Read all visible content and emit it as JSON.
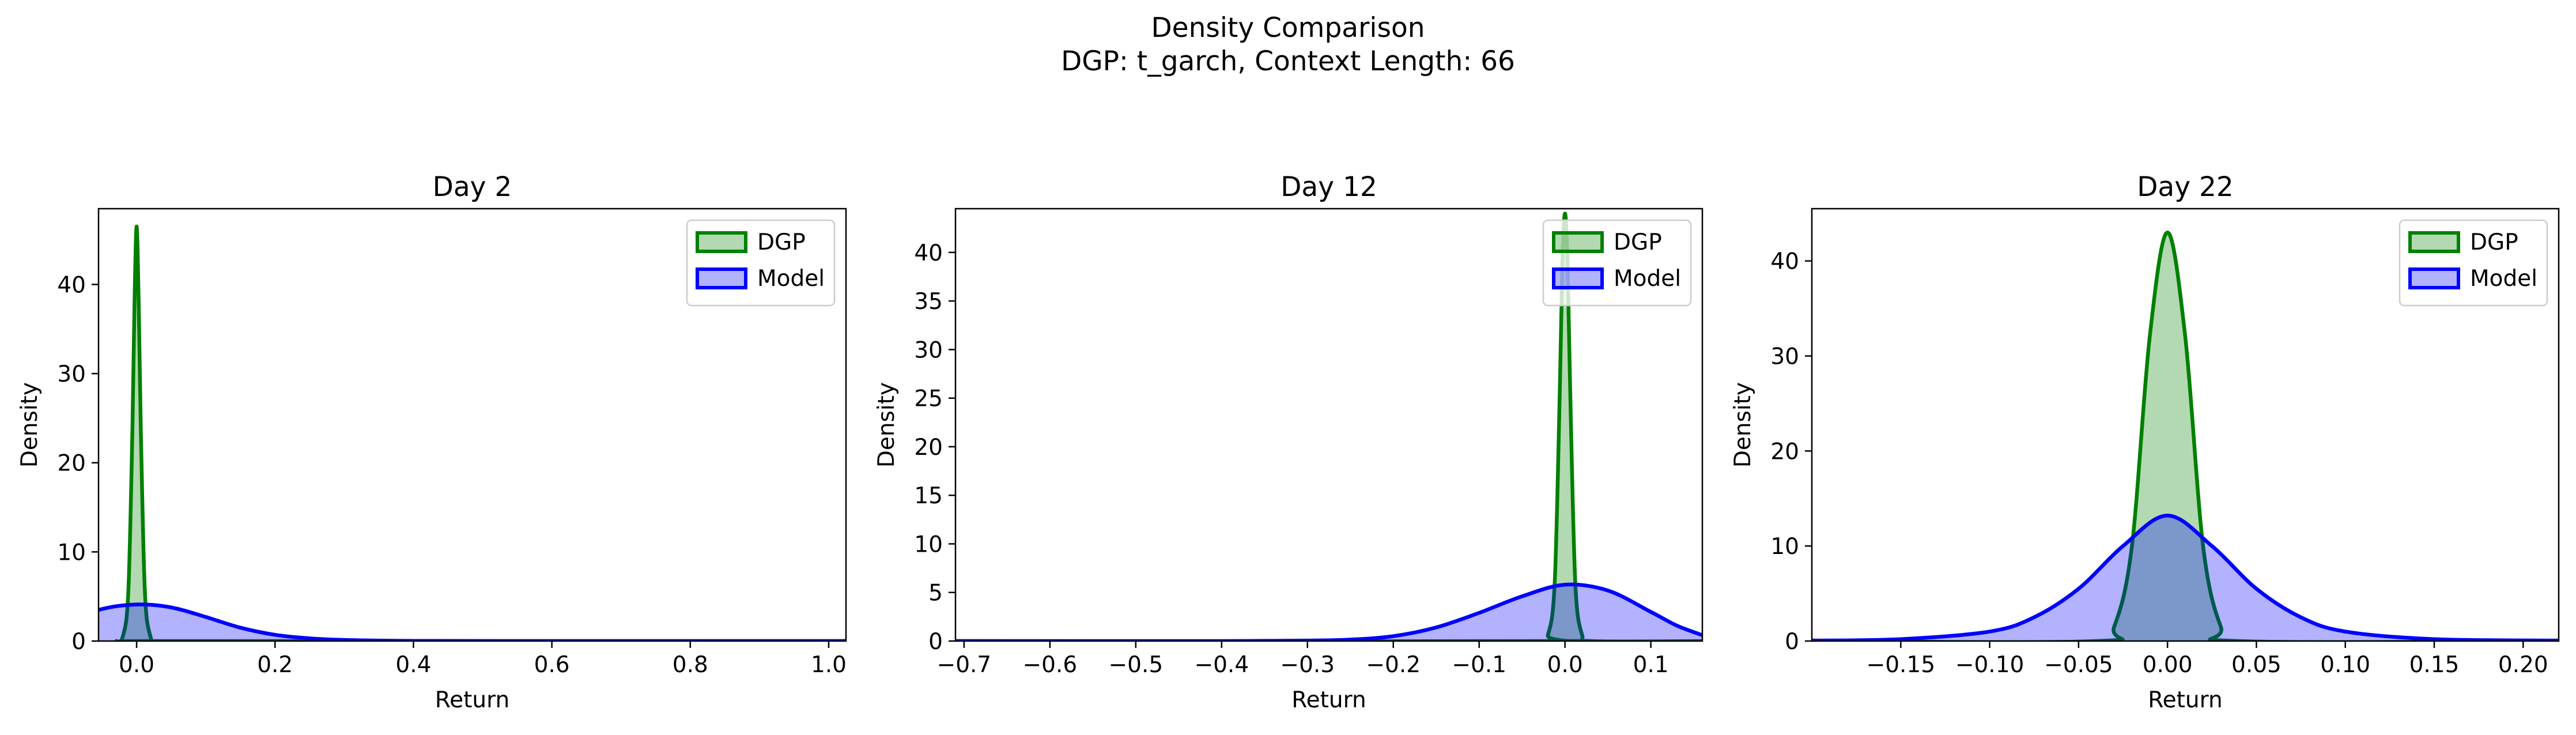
{
  "figure": {
    "title_line1": "Density Comparison",
    "title_line2": "DGP: t_garch, Context Length: 66"
  },
  "colors": {
    "dgp": "#008000",
    "model": "#0000ff",
    "dgp_fill": "rgba(0,128,0,0.3)",
    "model_fill": "rgba(0,0,255,0.3)"
  },
  "chart_data": [
    {
      "type": "area",
      "title": "Day 2",
      "xlabel": "Return",
      "ylabel": "Density",
      "xlim": [
        -0.055,
        1.025
      ],
      "ylim": [
        0,
        48.5
      ],
      "xticks": [
        0.0,
        0.2,
        0.4,
        0.6,
        0.8,
        1.0
      ],
      "xtick_labels": [
        "0.0",
        "0.2",
        "0.4",
        "0.6",
        "0.8",
        "1.0"
      ],
      "yticks": [
        0,
        10,
        20,
        30,
        40
      ],
      "ytick_labels": [
        "0",
        "10",
        "20",
        "30",
        "40"
      ],
      "legend": "top-right",
      "series": [
        {
          "name": "DGP",
          "x": [
            -0.03,
            -0.02,
            -0.012,
            -0.006,
            -0.003,
            0.0,
            0.003,
            0.006,
            0.012,
            0.02,
            0.03,
            0.06,
            1.025
          ],
          "y": [
            0.0,
            0.5,
            5.5,
            24.0,
            38.0,
            46.5,
            38.0,
            24.0,
            5.5,
            0.5,
            0.0,
            0.0,
            0.0
          ]
        },
        {
          "name": "Model",
          "x": [
            -0.055,
            -0.03,
            0.0,
            0.03,
            0.06,
            0.1,
            0.15,
            0.2,
            0.25,
            0.3,
            0.4,
            0.6,
            0.8,
            1.025
          ],
          "y": [
            3.5,
            3.9,
            4.1,
            4.0,
            3.6,
            2.7,
            1.5,
            0.7,
            0.3,
            0.12,
            0.02,
            0.0,
            0.0,
            0.0
          ]
        }
      ]
    },
    {
      "type": "area",
      "title": "Day 12",
      "xlabel": "Return",
      "ylabel": "Density",
      "xlim": [
        -0.71,
        0.16
      ],
      "ylim": [
        0,
        44.5
      ],
      "xticks": [
        -0.7,
        -0.6,
        -0.5,
        -0.4,
        -0.3,
        -0.2,
        -0.1,
        0.0,
        0.1
      ],
      "xtick_labels": [
        "−0.7",
        "−0.6",
        "−0.5",
        "−0.4",
        "−0.3",
        "−0.2",
        "−0.1",
        "0.0",
        "0.1"
      ],
      "yticks": [
        0,
        5,
        10,
        15,
        20,
        25,
        30,
        35,
        40
      ],
      "ytick_labels": [
        "0",
        "5",
        "10",
        "15",
        "20",
        "25",
        "30",
        "35",
        "40"
      ],
      "legend": "top-right",
      "series": [
        {
          "name": "DGP",
          "x": [
            -0.71,
            -0.03,
            -0.02,
            -0.012,
            -0.006,
            -0.003,
            0.0,
            0.003,
            0.006,
            0.012,
            0.02,
            0.03,
            0.16
          ],
          "y": [
            0.0,
            0.0,
            0.6,
            6.0,
            26.0,
            39.0,
            44.0,
            39.0,
            26.0,
            6.0,
            0.6,
            0.0,
            0.0
          ]
        },
        {
          "name": "Model",
          "x": [
            -0.71,
            -0.4,
            -0.3,
            -0.25,
            -0.2,
            -0.15,
            -0.1,
            -0.05,
            0.0,
            0.05,
            0.1,
            0.13,
            0.16
          ],
          "y": [
            0.0,
            0.0,
            0.05,
            0.15,
            0.5,
            1.4,
            2.9,
            4.6,
            5.8,
            5.2,
            3.0,
            1.6,
            0.6
          ]
        }
      ]
    },
    {
      "type": "area",
      "title": "Day 22",
      "xlabel": "Return",
      "ylabel": "Density",
      "xlim": [
        -0.2,
        0.22
      ],
      "ylim": [
        0,
        45.5
      ],
      "xticks": [
        -0.15,
        -0.1,
        -0.05,
        0.0,
        0.05,
        0.1,
        0.15,
        0.2
      ],
      "xtick_labels": [
        "−0.15",
        "−0.10",
        "−0.05",
        "0.00",
        "0.05",
        "0.10",
        "0.15",
        "0.20"
      ],
      "yticks": [
        0,
        10,
        20,
        30,
        40
      ],
      "ytick_labels": [
        "0",
        "10",
        "20",
        "30",
        "40"
      ],
      "legend": "top-right",
      "series": [
        {
          "name": "DGP",
          "x": [
            -0.2,
            -0.04,
            -0.03,
            -0.02,
            -0.01,
            0.0,
            0.01,
            0.02,
            0.03,
            0.04,
            0.22
          ],
          "y": [
            0.0,
            0.0,
            1.5,
            10.0,
            32.0,
            43.0,
            32.0,
            10.0,
            1.5,
            0.0,
            0.0
          ]
        },
        {
          "name": "Model",
          "x": [
            -0.2,
            -0.15,
            -0.1,
            -0.075,
            -0.05,
            -0.025,
            0.0,
            0.025,
            0.05,
            0.075,
            0.1,
            0.15,
            0.22
          ],
          "y": [
            0.05,
            0.2,
            1.0,
            2.5,
            5.5,
            10.0,
            13.2,
            10.0,
            5.5,
            2.5,
            1.0,
            0.2,
            0.05
          ]
        }
      ]
    }
  ]
}
